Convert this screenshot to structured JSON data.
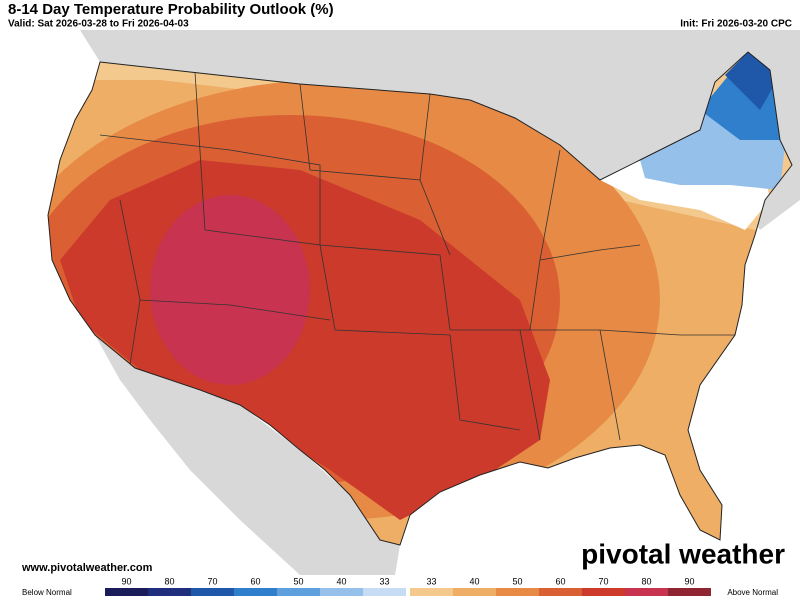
{
  "header": {
    "title": "8-14 Day Temperature Probability Outlook (%)",
    "valid": "Valid: Sat 2026-03-28 to Fri 2026-04-03",
    "init": "Init: Fri 2026-03-20 CPC"
  },
  "footer": {
    "website": "www.pivotalweather.com",
    "brand": "pivotal weather"
  },
  "legend": {
    "below_label": "Below Normal",
    "above_label": "Above Normal",
    "below": [
      {
        "label": 90,
        "color": "#1b1d5a"
      },
      {
        "label": 80,
        "color": "#1f2f7e"
      },
      {
        "label": 70,
        "color": "#1f58a8"
      },
      {
        "label": 60,
        "color": "#2f7fcc"
      },
      {
        "label": 50,
        "color": "#5e9fde"
      },
      {
        "label": 40,
        "color": "#95c0ea"
      },
      {
        "label": 33,
        "color": "#c6dcf3"
      }
    ],
    "above": [
      {
        "label": 33,
        "color": "#f3c98d"
      },
      {
        "label": 40,
        "color": "#eeae66"
      },
      {
        "label": 50,
        "color": "#e68a45"
      },
      {
        "label": 60,
        "color": "#da5f33"
      },
      {
        "label": 70,
        "color": "#cc3a2b"
      },
      {
        "label": 80,
        "color": "#c8334f"
      },
      {
        "label": 90,
        "color": "#8f2530"
      }
    ]
  }
}
